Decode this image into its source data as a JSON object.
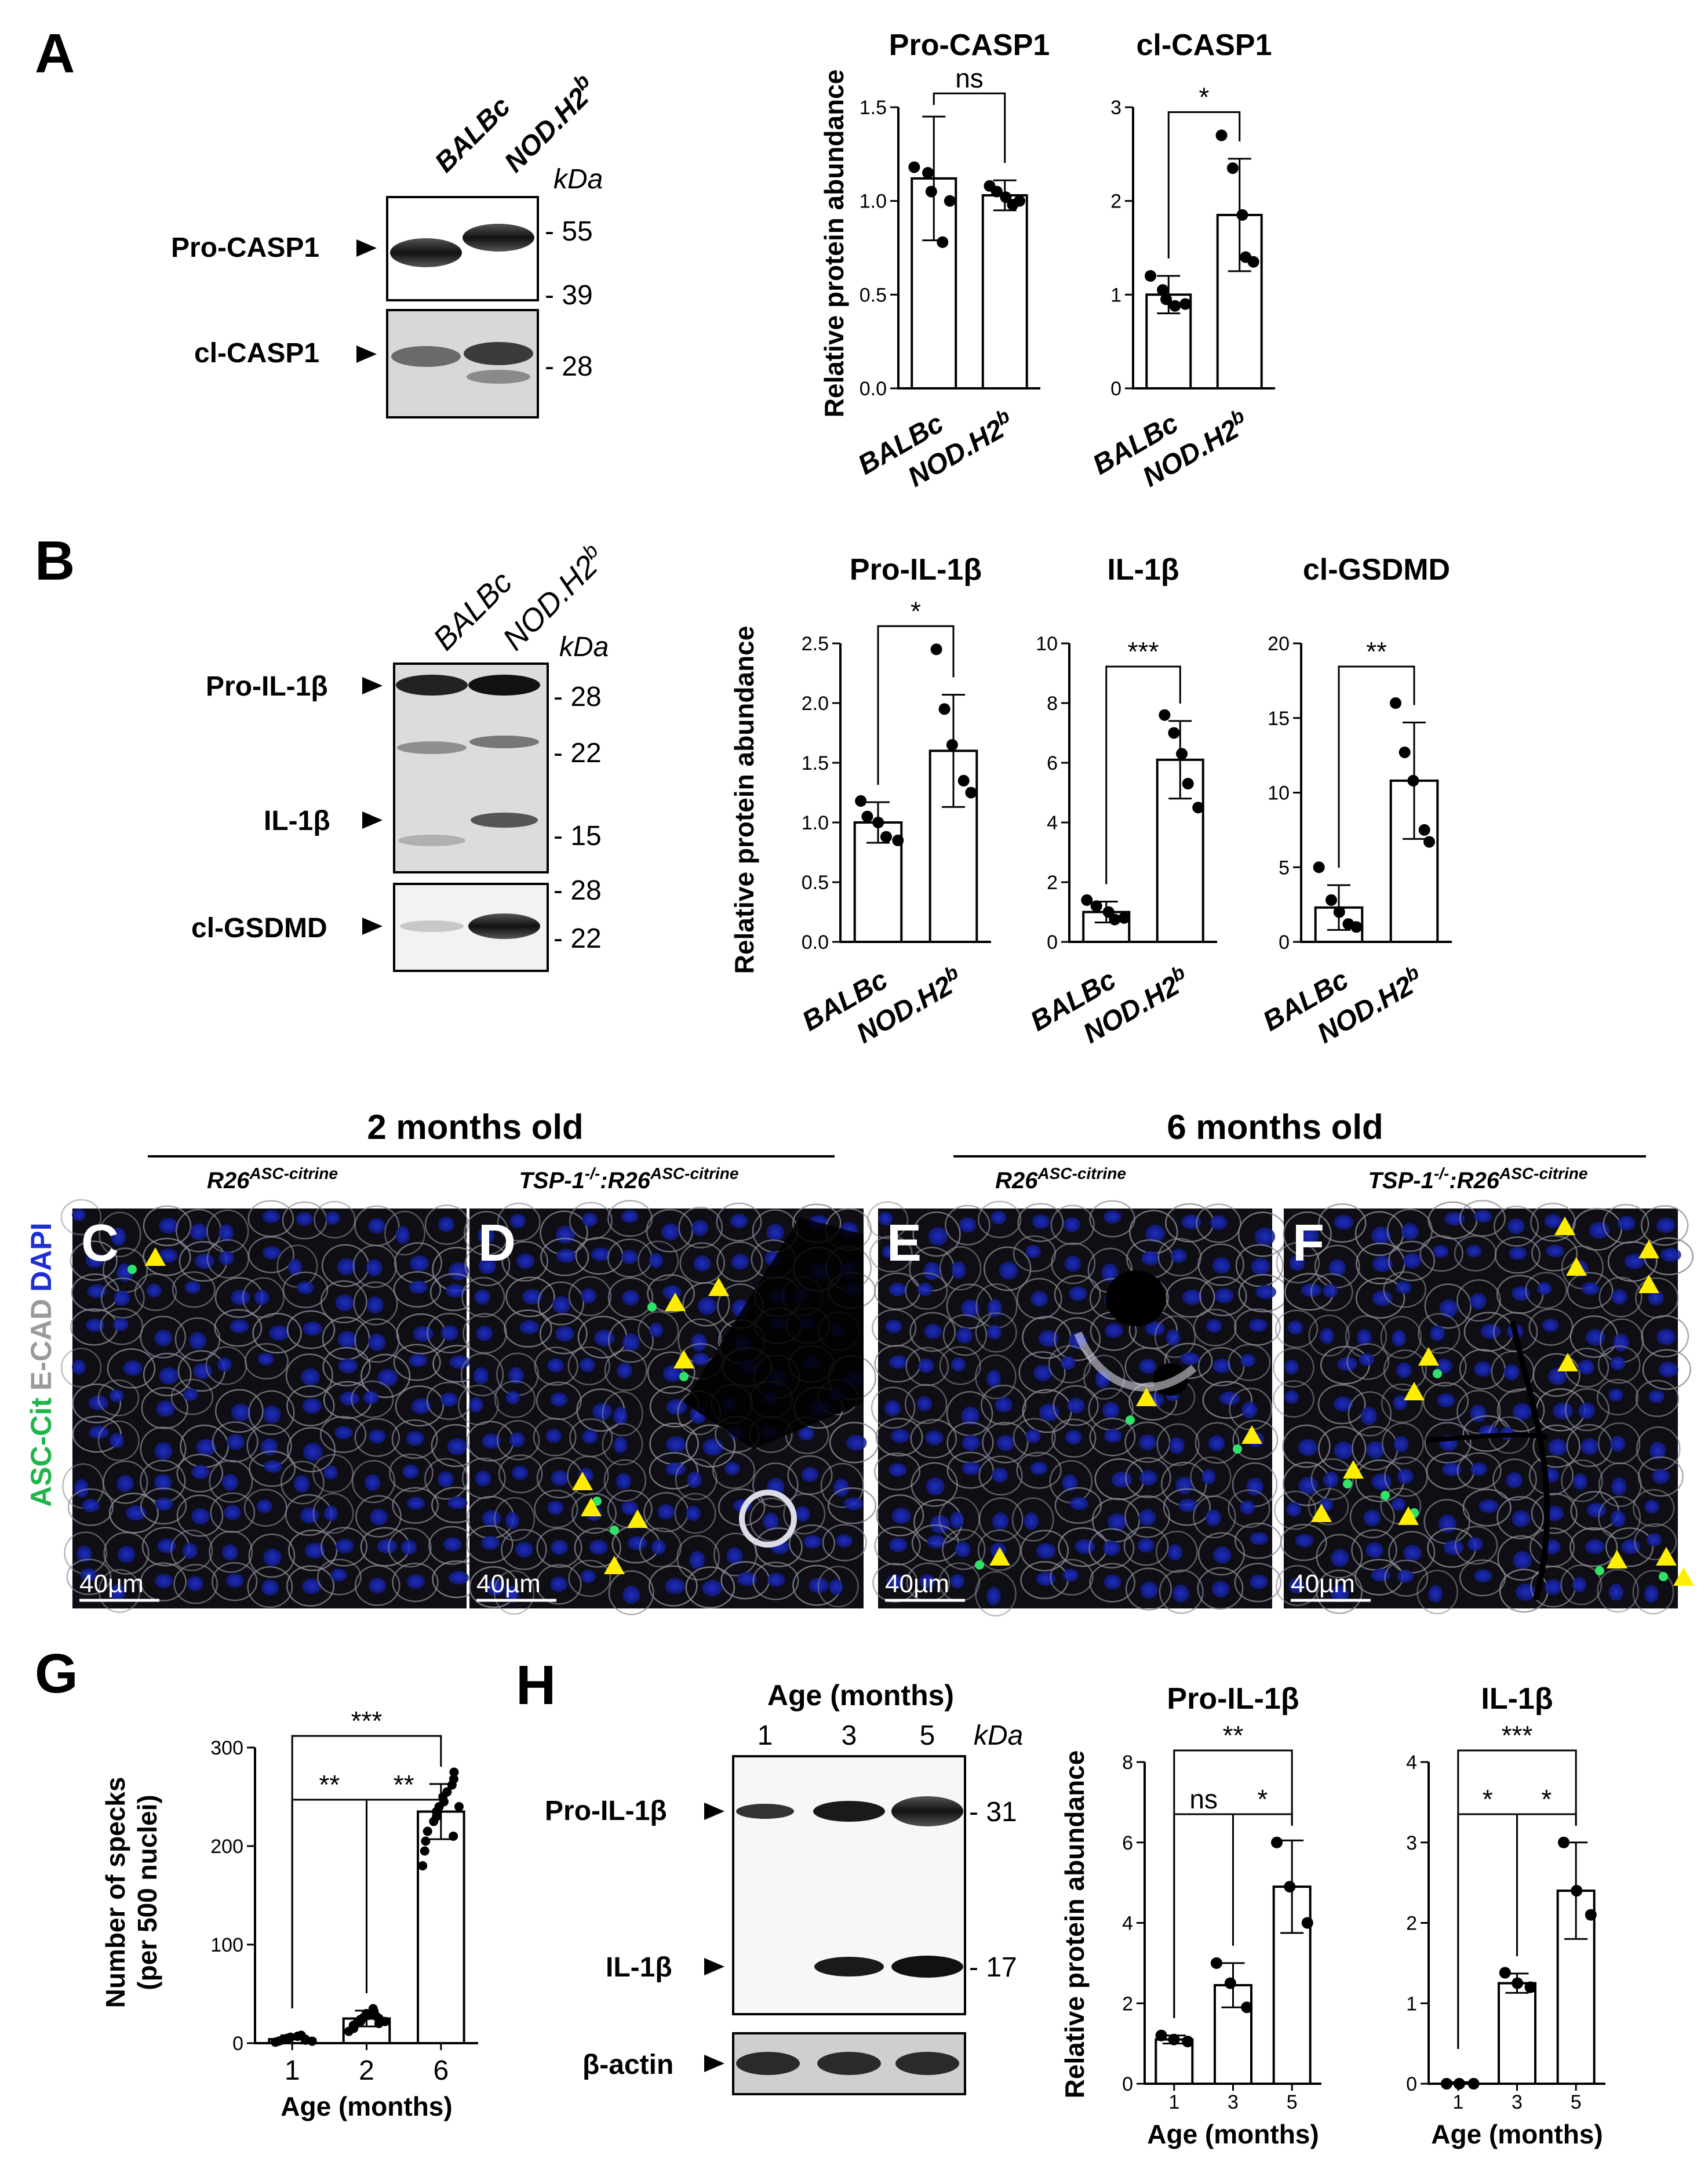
{
  "panels": {
    "A": "A",
    "B": "B",
    "G": "G",
    "H": "H",
    "C": "C",
    "D": "D",
    "E": "E",
    "F": "F"
  },
  "blotA": {
    "lanes": [
      "BALBc",
      "NOD.H2"
    ],
    "lane_sup": "b",
    "kda": "kDa",
    "rows": [
      {
        "label": "Pro-CASP1",
        "mw": [
          "55",
          "39"
        ]
      },
      {
        "label": "cl-CASP1",
        "mw": [
          "28"
        ]
      }
    ]
  },
  "blotB": {
    "lanes": [
      "BALBc",
      "NOD.H2"
    ],
    "lane_sup": "b",
    "kda": "kDa",
    "rows": [
      {
        "label": "Pro-IL-1β"
      },
      {
        "label": "IL-1β"
      },
      {
        "label": "cl-GSDMD"
      }
    ],
    "mw": [
      "28",
      "22",
      "15",
      "28",
      "22"
    ]
  },
  "blotH": {
    "title": "Age (months)",
    "lanes": [
      "1",
      "3",
      "5"
    ],
    "kda": "kDa",
    "rows": [
      {
        "label": "Pro-IL-1β"
      },
      {
        "label": "IL-1β"
      },
      {
        "label": "β-actin"
      }
    ],
    "mw": [
      "- 31",
      "- 17"
    ]
  },
  "micro": {
    "group1": "2 months old",
    "group2": "6 months old",
    "sub_base": "R26",
    "sub_sup": "ASC-citrine",
    "sub_prefix": "TSP-1",
    "sub_prefix_sup": "-/-",
    "stain": {
      "asc": "ASC-Cit",
      "ecad": "E-CAD",
      "dapi": "DAPI"
    },
    "scale": "40µm",
    "colors": {
      "asc": "#1fb54a",
      "ecad": "#9a9a9a",
      "dapi": "#1f2fd6",
      "arrow": "#ffee00"
    }
  },
  "chart_data": [
    {
      "id": "A1",
      "type": "bar",
      "title": "Pro-CASP1",
      "ylabel": "Relative protein abundance",
      "categories": [
        "BALBc",
        "NOD.H2b"
      ],
      "values": [
        1.12,
        1.03
      ],
      "err": [
        0.33,
        0.08
      ],
      "points": [
        [
          1.18,
          1.15,
          1.05,
          0.78,
          1.0
        ],
        [
          1.08,
          1.05,
          1.02,
          0.98,
          1.0
        ]
      ],
      "ylim": [
        0,
        1.5
      ],
      "yticks": [
        "0.0",
        "0.5",
        "1.0",
        "1.5"
      ],
      "sig": [
        {
          "a": 0,
          "b": 1,
          "t": "ns"
        }
      ]
    },
    {
      "id": "A2",
      "type": "bar",
      "title": "cl-CASP1",
      "ylabel": "",
      "categories": [
        "BALBc",
        "NOD.H2b"
      ],
      "values": [
        1.0,
        1.85
      ],
      "err": [
        0.2,
        0.6
      ],
      "points": [
        [
          1.2,
          1.05,
          0.95,
          0.88,
          0.9
        ],
        [
          2.7,
          2.35,
          1.85,
          1.4,
          1.35
        ]
      ],
      "ylim": [
        0,
        3
      ],
      "yticks": [
        "0",
        "1",
        "2",
        "3"
      ],
      "sig": [
        {
          "a": 0,
          "b": 1,
          "t": "*"
        }
      ]
    },
    {
      "id": "B1",
      "type": "bar",
      "title": "Pro-IL-1β",
      "ylabel": "Relative protein abundance",
      "categories": [
        "BALBc",
        "NOD.H2b"
      ],
      "values": [
        1.0,
        1.6
      ],
      "err": [
        0.17,
        0.47
      ],
      "points": [
        [
          1.18,
          1.05,
          1.0,
          0.88,
          0.85
        ],
        [
          2.45,
          1.95,
          1.65,
          1.35,
          1.25
        ]
      ],
      "ylim": [
        0,
        2.5
      ],
      "yticks": [
        "0.0",
        "0.5",
        "1.0",
        "1.5",
        "2.0",
        "2.5"
      ],
      "sig": [
        {
          "a": 0,
          "b": 1,
          "t": "*"
        }
      ]
    },
    {
      "id": "B2",
      "type": "bar",
      "title": "IL-1β",
      "ylabel": "",
      "categories": [
        "BALBc",
        "NOD.H2b"
      ],
      "values": [
        1.0,
        6.1
      ],
      "err": [
        0.35,
        1.3
      ],
      "points": [
        [
          1.4,
          1.2,
          1.0,
          0.75,
          0.8
        ],
        [
          7.6,
          7.0,
          6.3,
          5.3,
          4.5
        ]
      ],
      "ylim": [
        0,
        10
      ],
      "yticks": [
        "0",
        "2",
        "4",
        "6",
        "8",
        "10"
      ],
      "sig": [
        {
          "a": 0,
          "b": 1,
          "t": "***"
        }
      ]
    },
    {
      "id": "B3",
      "type": "bar",
      "title": "cl-GSDMD",
      "ylabel": "",
      "categories": [
        "BALBc",
        "NOD.H2b"
      ],
      "values": [
        2.3,
        10.8
      ],
      "err": [
        1.5,
        3.9
      ],
      "points": [
        [
          5.0,
          2.8,
          2.0,
          1.2,
          1.0
        ],
        [
          16.0,
          12.7,
          10.8,
          7.5,
          6.7
        ]
      ],
      "ylim": [
        0,
        20
      ],
      "yticks": [
        "0",
        "5",
        "10",
        "15",
        "20"
      ],
      "sig": [
        {
          "a": 0,
          "b": 1,
          "t": "**"
        }
      ]
    },
    {
      "id": "G",
      "type": "bar",
      "title": "",
      "ylabel": "Number of specks",
      "ylabel2": "(per 500 nuclei)",
      "xlabel": "Age (months)",
      "categories": [
        "1",
        "2",
        "6"
      ],
      "values": [
        4,
        25,
        235
      ],
      "err": [
        4,
        8,
        28
      ],
      "points": [
        [
          1,
          2,
          3,
          4,
          5,
          6,
          7,
          8,
          4,
          3,
          2
        ],
        [
          12,
          15,
          18,
          20,
          22,
          24,
          26,
          28,
          30,
          32,
          35,
          20,
          27,
          25,
          22
        ],
        [
          180,
          195,
          205,
          215,
          225,
          230,
          235,
          240,
          245,
          250,
          255,
          262,
          268,
          275,
          210,
          240
        ]
      ],
      "ylim": [
        0,
        300
      ],
      "yticks": [
        "0",
        "100",
        "200",
        "300"
      ],
      "sig": [
        {
          "a": 0,
          "b": 1,
          "t": "**"
        },
        {
          "a": 1,
          "b": 2,
          "t": "**"
        },
        {
          "a": 0,
          "b": 2,
          "t": "***"
        }
      ]
    },
    {
      "id": "H1",
      "type": "bar",
      "title": "Pro-IL-1β",
      "ylabel": "Relative protein abundance",
      "xlabel": "Age (months)",
      "categories": [
        "1",
        "3",
        "5"
      ],
      "values": [
        1.1,
        2.45,
        4.9
      ],
      "err": [
        0.1,
        0.55,
        1.15
      ],
      "points": [
        [
          1.2,
          1.1,
          1.05
        ],
        [
          3.0,
          2.5,
          1.9
        ],
        [
          6.0,
          4.9,
          4.0
        ]
      ],
      "ylim": [
        0,
        8
      ],
      "yticks": [
        "0",
        "2",
        "4",
        "6",
        "8"
      ],
      "sig": [
        {
          "a": 0,
          "b": 1,
          "t": "ns"
        },
        {
          "a": 1,
          "b": 2,
          "t": "*"
        },
        {
          "a": 0,
          "b": 2,
          "t": "**"
        }
      ]
    },
    {
      "id": "H2",
      "type": "bar",
      "title": "IL-1β",
      "ylabel": "",
      "xlabel": "Age (months)",
      "categories": [
        "1",
        "3",
        "5"
      ],
      "values": [
        0.0,
        1.25,
        2.4
      ],
      "err": [
        0.02,
        0.12,
        0.6
      ],
      "points": [
        [
          0.0,
          0.0,
          0.0
        ],
        [
          1.38,
          1.25,
          1.2
        ],
        [
          3.0,
          2.4,
          2.1
        ]
      ],
      "ylim": [
        0,
        4
      ],
      "yticks": [
        "0",
        "1",
        "2",
        "3",
        "4"
      ],
      "sig": [
        {
          "a": 0,
          "b": 1,
          "t": "*"
        },
        {
          "a": 1,
          "b": 2,
          "t": "*"
        },
        {
          "a": 0,
          "b": 2,
          "t": "***"
        }
      ]
    }
  ]
}
